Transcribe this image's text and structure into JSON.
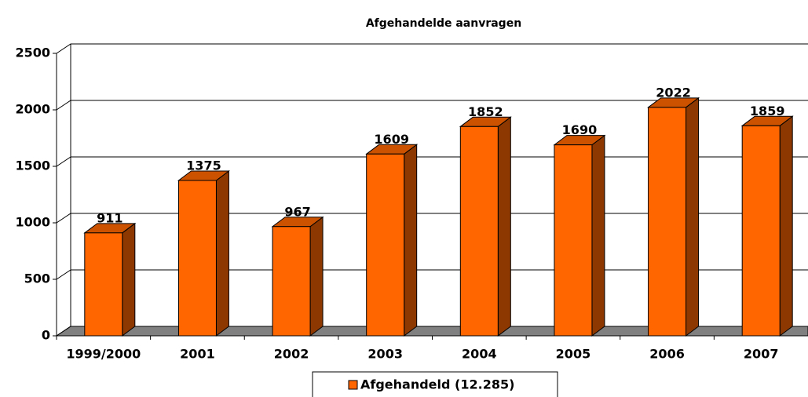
{
  "chart_data": {
    "type": "bar3d",
    "title": "Afgehandelde aanvragen",
    "categories": [
      "1999/2000",
      "2001",
      "2002",
      "2003",
      "2004",
      "2005",
      "2006",
      "2007"
    ],
    "series": [
      {
        "name": "Afgehandeld (12.285)",
        "color": "#ff6600",
        "values": [
          911,
          1375,
          967,
          1609,
          1852,
          1690,
          2022,
          1859
        ]
      }
    ],
    "ylim": [
      0,
      2500
    ],
    "yticks": [
      0,
      500,
      1000,
      1500,
      2000,
      2500
    ],
    "grid": true,
    "legend": "bottom"
  }
}
